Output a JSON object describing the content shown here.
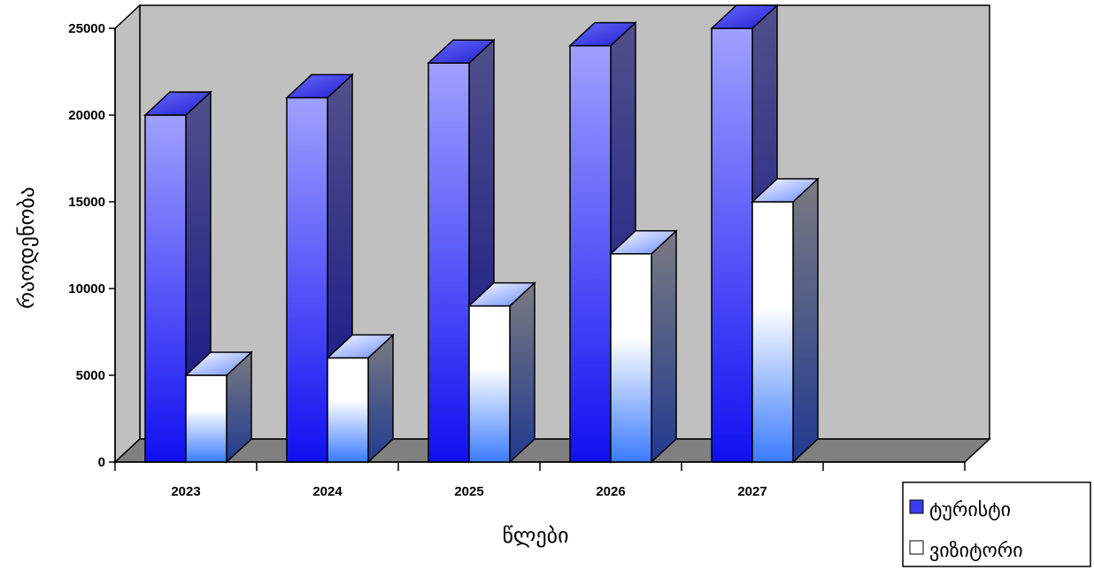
{
  "chart_data": {
    "type": "bar",
    "categories": [
      "2023",
      "2024",
      "2025",
      "2026",
      "2027"
    ],
    "series": [
      {
        "name": "ტურისტი",
        "values": [
          20000,
          21000,
          23000,
          24000,
          25000
        ],
        "color": "#5c5cff"
      },
      {
        "name": "ვიზიტორი",
        "values": [
          5000,
          6000,
          9000,
          12000,
          15000
        ],
        "color": "#ffffff"
      }
    ],
    "xlabel": "წლები",
    "ylabel": "რაოდენობა",
    "ylim": [
      0,
      25000
    ],
    "yticks": [
      0,
      5000,
      10000,
      15000,
      20000,
      25000
    ],
    "grid": false,
    "legend_position": "bottom-right",
    "style": "3d-column"
  }
}
